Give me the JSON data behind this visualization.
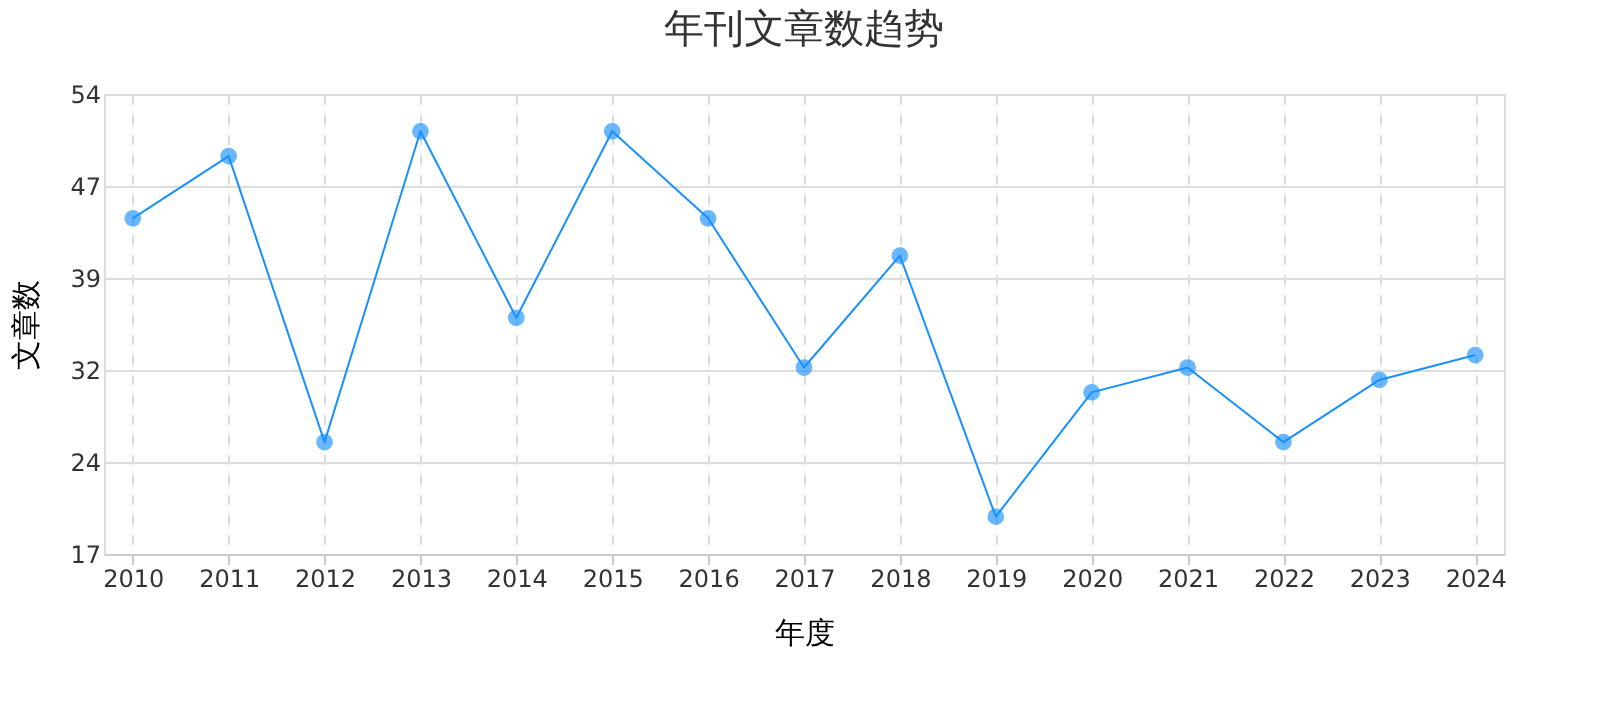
{
  "chart_data": {
    "type": "line",
    "title": "年刊文章数趋势",
    "xlabel": "年度",
    "ylabel": "文章数",
    "categories": [
      "2010",
      "2011",
      "2012",
      "2013",
      "2014",
      "2015",
      "2016",
      "2017",
      "2018",
      "2019",
      "2020",
      "2021",
      "2022",
      "2023",
      "2024"
    ],
    "series": [
      {
        "color": "#1890ff",
        "values": [
          44,
          49,
          26,
          51,
          36,
          51,
          44,
          32,
          41,
          20,
          30,
          32,
          26,
          31,
          33
        ]
      }
    ],
    "ylim": [
      17,
      54
    ],
    "yticks": [
      17,
      {
        "value": 24.4,
        "label": "24"
      },
      {
        "value": 31.8,
        "label": "32"
      },
      {
        "value": 39.2,
        "label": "39"
      },
      {
        "value": 46.6,
        "label": "47"
      },
      54
    ],
    "grid": true,
    "marker": "circle",
    "line_style": "solid"
  }
}
